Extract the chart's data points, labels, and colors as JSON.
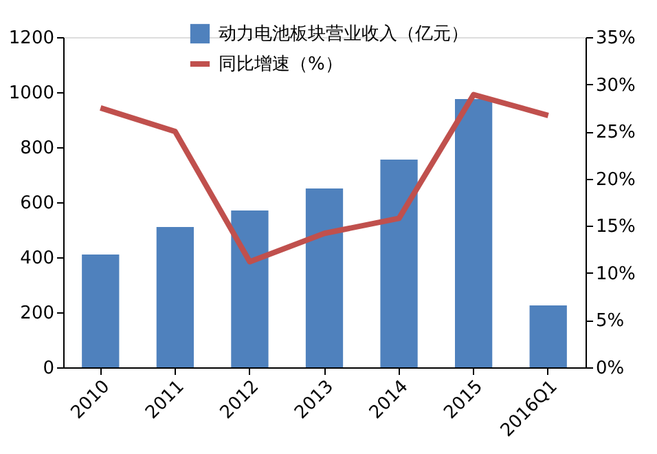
{
  "chart_data": {
    "type": "bar",
    "categories": [
      "2010",
      "2011",
      "2012",
      "2013",
      "2014",
      "2015",
      "2016Q1"
    ],
    "series": [
      {
        "name": "动力电池板块营业收入（亿元）",
        "color": "#4f81bd",
        "values": [
          410,
          510,
          570,
          650,
          755,
          975,
          225
        ]
      },
      {
        "name": "同比增速（%）",
        "type": "line",
        "axis": "y2",
        "color": "#c0504d",
        "values": [
          27.5,
          25.0,
          11.2,
          14.2,
          15.8,
          28.9,
          26.7
        ]
      }
    ],
    "ylim": [
      0,
      1200
    ],
    "yticks": [
      0,
      200,
      400,
      600,
      800,
      1000,
      1200
    ],
    "y2lim": [
      0,
      35
    ],
    "y2ticks": [
      {
        "value": 0,
        "label": "0%"
      },
      {
        "value": 5,
        "label": "5%"
      },
      {
        "value": 10,
        "label": "10%"
      },
      {
        "value": 15,
        "label": "15%"
      },
      {
        "value": 20,
        "label": "20%"
      },
      {
        "value": 25,
        "label": "25%"
      },
      {
        "value": 30,
        "label": "30%"
      },
      {
        "value": 35,
        "label": "35%"
      }
    ],
    "grid": false,
    "legend": "top",
    "marker": "none",
    "line_style": "solid"
  }
}
